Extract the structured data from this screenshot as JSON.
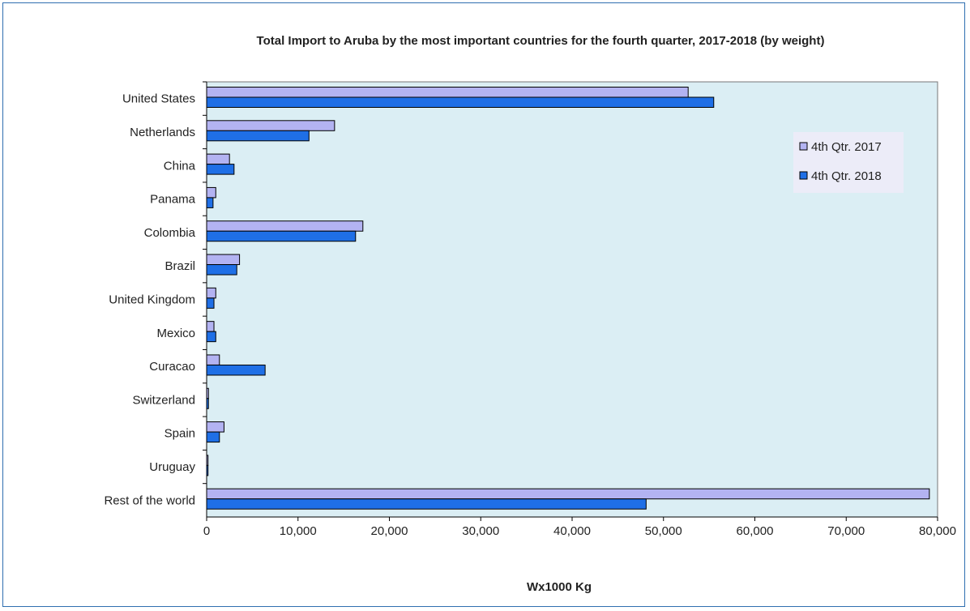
{
  "colors": {
    "plot_background": "#dbeef4",
    "series_2017": "#b3b3f2",
    "series_2018": "#1f6fe6",
    "bar_outline": "#000000",
    "frame_border": "#2f6fb0"
  },
  "chart_data": {
    "type": "bar",
    "orientation": "horizontal",
    "title": "Total Import to Aruba  by the most important countries for the fourth quarter, 2017-2018 (by weight)",
    "xlabel": "Wx1000 Kg",
    "ylabel": "",
    "xlim": [
      0,
      80000
    ],
    "xticks": [
      0,
      10000,
      20000,
      30000,
      40000,
      50000,
      60000,
      70000,
      80000
    ],
    "xtick_labels": [
      "0",
      "10,000",
      "20,000",
      "30,000",
      "40,000",
      "50,000",
      "60,000",
      "70,000",
      "80,000"
    ],
    "grid": false,
    "legend_position": "top-right",
    "categories": [
      "United States",
      "Netherlands",
      "China",
      "Panama",
      "Colombia",
      "Brazil",
      "United Kingdom",
      "Mexico",
      "Curacao",
      "Switzerland",
      "Spain",
      "Uruguay",
      "Rest of the world"
    ],
    "series": [
      {
        "name": "4th Qtr. 2017",
        "values": [
          52700,
          14000,
          2500,
          1000,
          17100,
          3600,
          1000,
          800,
          1400,
          200,
          1900,
          150,
          79100
        ]
      },
      {
        "name": "4th Qtr. 2018",
        "values": [
          55500,
          11200,
          3000,
          700,
          16300,
          3300,
          800,
          1000,
          6400,
          200,
          1400,
          150,
          48100
        ]
      }
    ]
  }
}
